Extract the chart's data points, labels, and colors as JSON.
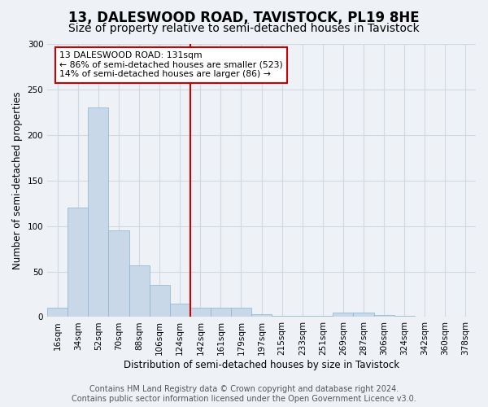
{
  "title": "13, DALESWOOD ROAD, TAVISTOCK, PL19 8HE",
  "subtitle": "Size of property relative to semi-detached houses in Tavistock",
  "xlabel": "Distribution of semi-detached houses by size in Tavistock",
  "ylabel": "Number of semi-detached properties",
  "bar_labels": [
    "16sqm",
    "34sqm",
    "52sqm",
    "70sqm",
    "88sqm",
    "106sqm",
    "124sqm",
    "142sqm",
    "161sqm",
    "179sqm",
    "197sqm",
    "215sqm",
    "233sqm",
    "251sqm",
    "269sqm",
    "287sqm",
    "306sqm",
    "324sqm",
    "342sqm",
    "360sqm",
    "378sqm"
  ],
  "bar_values": [
    10,
    120,
    230,
    95,
    57,
    35,
    15,
    10,
    10,
    10,
    3,
    1,
    1,
    1,
    5,
    5,
    2,
    1,
    0,
    0,
    0
  ],
  "bar_color": "#c8d8e8",
  "bar_edge_color": "#8ab4cc",
  "grid_color": "#d0d8e4",
  "vline_color": "#cc0000",
  "annotation_line1": "13 DALESWOOD ROAD: 131sqm",
  "annotation_line2": "← 86% of semi-detached houses are smaller (523)",
  "annotation_line3": "14% of semi-detached houses are larger (86) →",
  "annotation_box_color": "#ffffff",
  "annotation_box_edge": "#cc0000",
  "footer1": "Contains HM Land Registry data © Crown copyright and database right 2024.",
  "footer2": "Contains public sector information licensed under the Open Government Licence v3.0.",
  "ylim": [
    0,
    300
  ],
  "yticks": [
    0,
    50,
    100,
    150,
    200,
    250,
    300
  ],
  "title_fontsize": 12,
  "subtitle_fontsize": 10,
  "axis_label_fontsize": 8.5,
  "tick_fontsize": 7.5,
  "footer_fontsize": 7.0,
  "bg_color": "#eef2f7"
}
